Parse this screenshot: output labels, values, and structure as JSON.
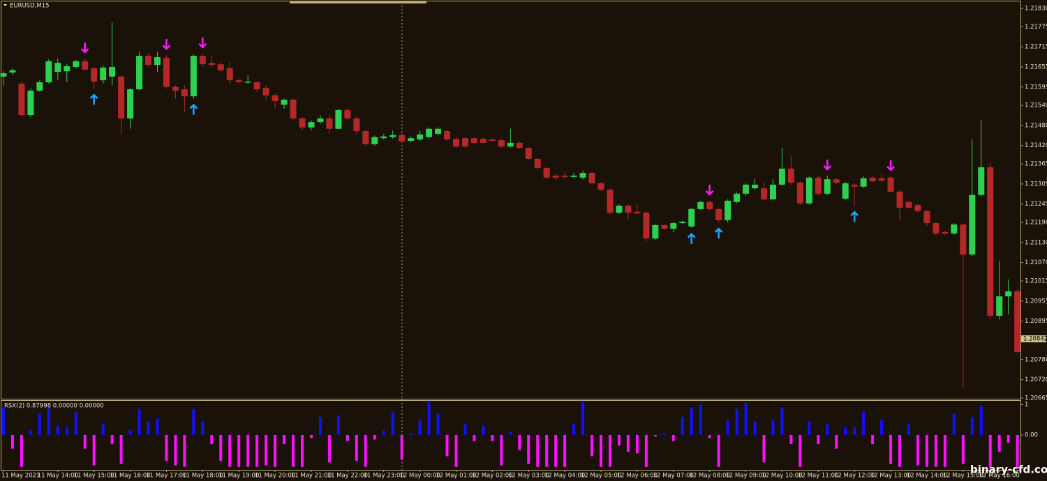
{
  "chart_data": [
    {
      "type": "candlestick",
      "title": "EURUSD,M15",
      "categories": [
        "11 May 2021",
        null,
        null,
        null,
        null,
        null,
        "11 May 14:00",
        null,
        null,
        null,
        "11 May 15:00",
        null,
        null,
        null,
        "11 May 16:00",
        null,
        null,
        null,
        "11 May 17:00",
        null,
        null,
        null,
        "11 May 18:00",
        null,
        null,
        null,
        "11 May 19:00",
        null,
        null,
        null,
        "11 May 20:00",
        null,
        null,
        null,
        "11 May 21:00",
        null,
        null,
        null,
        "11 May 22:00",
        null,
        null,
        null,
        "11 May 23:00",
        null,
        null,
        null,
        "12 May 00:00",
        null,
        null,
        null,
        "12 May 01:00",
        null,
        null,
        null,
        "12 May 02:00",
        null,
        null,
        null,
        "12 May 03:00",
        null,
        null,
        null,
        "12 May 04:00",
        null,
        null,
        null,
        "12 May 05:00",
        null,
        null,
        null,
        "12 May 06:00",
        null,
        null,
        null,
        "12 May 07:00",
        null,
        null,
        null,
        "12 May 08:00",
        null,
        null,
        null,
        "12 May 09:00",
        null,
        null,
        null,
        "12 May 10:00",
        null,
        null,
        null,
        "12 May 11:00",
        null,
        null,
        null,
        "12 May 12:00",
        null,
        null,
        null,
        "12 May 13:00",
        null,
        null,
        null,
        "12 May 14:00",
        null,
        null,
        null,
        "12 May 15:00",
        null,
        null,
        null,
        "12 May 16:00",
        null,
        null
      ],
      "open": [
        1.21626,
        1.21638,
        1.21605,
        1.21511,
        1.21584,
        1.21609,
        1.2164,
        1.21642,
        1.21655,
        1.21672,
        1.21651,
        1.21615,
        1.21626,
        1.21626,
        1.21501,
        1.21588,
        1.21688,
        1.21661,
        1.21682,
        1.21595,
        1.21588,
        1.21567,
        1.21688,
        1.21667,
        1.21663,
        1.21651,
        1.21615,
        1.21609,
        1.21609,
        1.21592,
        1.2157,
        1.21542,
        1.21557,
        1.21501,
        1.21474,
        1.2149,
        1.21501,
        1.2147,
        1.21526,
        1.21501,
        1.21463,
        1.21424,
        1.21442,
        1.21445,
        1.21451,
        1.21434,
        1.21438,
        1.21445,
        1.21455,
        1.21463,
        1.2144,
        1.21442,
        1.21442,
        1.2144,
        1.21438,
        1.21436,
        1.21417,
        1.21428,
        1.21413,
        1.2138,
        1.21353,
        1.2133,
        1.2133,
        1.21326,
        1.21324,
        1.21338,
        1.21307,
        1.21288,
        1.21219,
        1.2124,
        1.21222,
        1.21219,
        1.21142,
        1.21182,
        1.21171,
        1.21188,
        1.21178,
        1.2123,
        1.21251,
        1.2123,
        1.21197,
        1.21251,
        1.21276,
        1.21292,
        1.21292,
        1.21259,
        1.21303,
        1.21351,
        1.21309,
        1.21247,
        1.21324,
        1.21276,
        1.21319,
        1.21261,
        1.21303,
        1.21297,
        1.21324,
        1.21322,
        1.21324,
        1.21282,
        1.21251,
        1.21242,
        1.21224,
        1.21188,
        1.21161,
        1.21157,
        1.21184,
        1.21094,
        1.21272,
        1.21355,
        1.20911,
        1.20969,
        1.20984
      ],
      "high": [
        1.21642,
        1.2165,
        1.21612,
        1.2159,
        1.21615,
        1.21678,
        1.2168,
        1.21665,
        1.21676,
        1.2168,
        1.21655,
        1.2166,
        1.21788,
        1.2163,
        1.21592,
        1.217,
        1.21695,
        1.217,
        1.2169,
        1.216,
        1.216,
        1.21692,
        1.21695,
        1.2169,
        1.2167,
        1.2167,
        1.2162,
        1.2163,
        1.21612,
        1.216,
        1.21575,
        1.2156,
        1.2156,
        1.21505,
        1.21495,
        1.2151,
        1.2151,
        1.2153,
        1.21532,
        1.21505,
        1.21465,
        1.2145,
        1.21455,
        1.21465,
        1.21458,
        1.21448,
        1.21465,
        1.21475,
        1.21476,
        1.21468,
        1.21445,
        1.21446,
        1.21445,
        1.21444,
        1.2144,
        1.2144,
        1.2147,
        1.21432,
        1.21416,
        1.21384,
        1.21357,
        1.21334,
        1.2134,
        1.21338,
        1.21345,
        1.21342,
        1.21311,
        1.21292,
        1.21244,
        1.21244,
        1.21245,
        1.21224,
        1.21186,
        1.21186,
        1.21192,
        1.21196,
        1.21234,
        1.21255,
        1.21255,
        1.21234,
        1.21259,
        1.2128,
        1.21307,
        1.2132,
        1.2131,
        1.2132,
        1.21413,
        1.2139,
        1.21313,
        1.21328,
        1.2133,
        1.2133,
        1.21323,
        1.21311,
        1.21307,
        1.2133,
        1.21328,
        1.21335,
        1.21328,
        1.21286,
        1.21255,
        1.21246,
        1.21228,
        1.21192,
        1.21165,
        1.21188,
        1.21188,
        1.21438,
        1.21497,
        1.2137,
        1.21076,
        1.2102,
        1.2099
      ],
      "low": [
        1.216,
        1.2163,
        1.21505,
        1.21505,
        1.2158,
        1.21605,
        1.21615,
        1.2161,
        1.2165,
        1.21645,
        1.2159,
        1.21605,
        1.216,
        1.21455,
        1.2147,
        1.21584,
        1.21655,
        1.2164,
        1.2159,
        1.2156,
        1.2152,
        1.2156,
        1.21655,
        1.21655,
        1.2164,
        1.21605,
        1.21605,
        1.21605,
        1.2158,
        1.21555,
        1.2153,
        1.2153,
        1.21495,
        1.21465,
        1.21465,
        1.21485,
        1.21455,
        1.21468,
        1.21495,
        1.21455,
        1.2142,
        1.2142,
        1.21438,
        1.2144,
        1.21428,
        1.2143,
        1.21434,
        1.2144,
        1.21452,
        1.21434,
        1.21413,
        1.21413,
        1.21424,
        1.21426,
        1.21432,
        1.21413,
        1.21413,
        1.21409,
        1.21376,
        1.21349,
        1.2132,
        1.21318,
        1.21318,
        1.21322,
        1.21318,
        1.21303,
        1.21284,
        1.21215,
        1.21215,
        1.212,
        1.21214,
        1.2113,
        1.21138,
        1.21167,
        1.2116,
        1.21184,
        1.21174,
        1.21226,
        1.21226,
        1.2119,
        1.2119,
        1.21247,
        1.2127,
        1.21288,
        1.21255,
        1.21255,
        1.21299,
        1.21303,
        1.21243,
        1.21243,
        1.2127,
        1.21272,
        1.21305,
        1.21257,
        1.2124,
        1.21293,
        1.2131,
        1.2131,
        1.21278,
        1.21195,
        1.2123,
        1.2122,
        1.2118,
        1.2115,
        1.21153,
        1.21153,
        1.20694,
        1.2109,
        1.21268,
        1.209,
        1.209,
        1.20915,
        1.208
      ],
      "close": [
        1.21636,
        1.21645,
        1.21511,
        1.21584,
        1.21609,
        1.21672,
        1.21667,
        1.21657,
        1.21672,
        1.21647,
        1.21611,
        1.21653,
        1.21655,
        1.21501,
        1.21588,
        1.21688,
        1.21661,
        1.21684,
        1.21595,
        1.21584,
        1.21567,
        1.21688,
        1.21663,
        1.21661,
        1.21645,
        1.21615,
        1.21609,
        1.21611,
        1.21588,
        1.2157,
        1.21553,
        1.21557,
        1.21501,
        1.21474,
        1.2149,
        1.21501,
        1.2147,
        1.21526,
        1.21501,
        1.21463,
        1.21424,
        1.21445,
        1.21447,
        1.21451,
        1.21432,
        1.21442,
        1.21453,
        1.2147,
        1.2147,
        1.21438,
        1.21417,
        1.21417,
        1.21428,
        1.21428,
        1.21434,
        1.21417,
        1.21428,
        1.21413,
        1.2138,
        1.21353,
        1.21324,
        1.21324,
        1.21326,
        1.2133,
        1.21338,
        1.21307,
        1.21288,
        1.21219,
        1.2124,
        1.21219,
        1.21217,
        1.21142,
        1.21182,
        1.21171,
        1.21188,
        1.21192,
        1.2123,
        1.21251,
        1.2123,
        1.21197,
        1.21255,
        1.21276,
        1.21303,
        1.21303,
        1.21259,
        1.21303,
        1.21351,
        1.21309,
        1.21247,
        1.21324,
        1.21276,
        1.21319,
        1.21309,
        1.21307,
        1.21297,
        1.21322,
        1.21313,
        1.21315,
        1.21282,
        1.21234,
        1.21234,
        1.21224,
        1.21188,
        1.21157,
        1.21157,
        1.21184,
        1.21094,
        1.21272,
        1.21355,
        1.20911,
        1.20969,
        1.20984,
        1.20803
      ],
      "up_color": "#2ed14f",
      "down_color": "#b52828",
      "down_arrows": [
        9,
        18,
        22,
        78,
        91,
        98
      ],
      "up_arrows": [
        10,
        21,
        76,
        79,
        94
      ],
      "down_arrow_color": "#ff19ff",
      "up_arrow_color": "#19a8ff",
      "ylim": [
        1.20665,
        1.2183
      ],
      "yticks": [
        {
          "value": 1.2183,
          "label": "1.21830"
        },
        {
          "value": 1.21775,
          "label": "1.21775"
        },
        {
          "value": 1.21715,
          "label": "1.21715"
        },
        {
          "value": 1.21655,
          "label": "1.21655"
        },
        {
          "value": 1.21595,
          "label": "1.21595"
        },
        {
          "value": 1.2154,
          "label": "1.21540"
        },
        {
          "value": 1.2148,
          "label": "1.21480"
        },
        {
          "value": 1.2142,
          "label": "1.21420"
        },
        {
          "value": 1.21365,
          "label": "1.21365"
        },
        {
          "value": 1.21305,
          "label": "1.21305"
        },
        {
          "value": 1.21245,
          "label": "1.21245"
        },
        {
          "value": 1.2119,
          "label": "1.21190"
        },
        {
          "value": 1.2113,
          "label": "1.21130"
        },
        {
          "value": 1.2107,
          "label": "1.21070"
        },
        {
          "value": 1.21015,
          "label": "1.21015"
        },
        {
          "value": 1.20955,
          "label": "1.20955"
        },
        {
          "value": 1.20895,
          "label": "1.20895"
        },
        {
          "value": 1.2078,
          "label": "1.20780"
        },
        {
          "value": 1.2072,
          "label": "1.20720"
        },
        {
          "value": 1.20665,
          "label": "1.20665"
        }
      ],
      "last_price": {
        "value": 1.20842,
        "label": "1.20842"
      }
    },
    {
      "type": "bar",
      "title": "RSX(2) 0.87998 0.00000 0.00000",
      "values": [
        0.9,
        -0.45,
        -1.05,
        0.15,
        0.7,
        0.9,
        0.3,
        0.25,
        0.75,
        -0.45,
        -1.0,
        0.35,
        -0.3,
        -0.95,
        0.15,
        0.85,
        0.45,
        0.55,
        -0.85,
        -1.0,
        -1.05,
        0.85,
        0.45,
        -0.3,
        -0.85,
        -1.05,
        -1.05,
        -1.05,
        -1.05,
        -1.0,
        -1.05,
        -0.3,
        -1.05,
        -1.05,
        -0.1,
        0.6,
        -0.9,
        0.65,
        -0.2,
        -0.85,
        -1.05,
        -0.15,
        0.15,
        0.75,
        -0.8,
        0.05,
        0.5,
        1.1,
        0.7,
        -0.7,
        -1.05,
        0.35,
        -0.2,
        0.3,
        -0.2,
        -1.0,
        0.1,
        -0.5,
        -0.95,
        -1.05,
        -1.05,
        -1.05,
        -1.05,
        0.35,
        1.1,
        -0.7,
        -1.05,
        -1.05,
        -0.35,
        -0.55,
        -0.6,
        -1.05,
        -0.05,
        0.05,
        -0.2,
        0.6,
        0.9,
        1.0,
        -0.1,
        -1.05,
        0.5,
        0.85,
        1.05,
        0.45,
        -0.9,
        0.5,
        0.9,
        -0.3,
        -1.05,
        0.45,
        -0.3,
        0.35,
        -0.45,
        0.25,
        0.25,
        0.75,
        -0.3,
        0.5,
        -0.95,
        -1.05,
        0.35,
        -1.0,
        -1.05,
        -1.05,
        -1.05,
        0.7,
        -0.95,
        0.6,
        0.95,
        -1.05,
        -0.55,
        -0.25,
        -1.05
      ],
      "positive_color": "#1010ff",
      "negative_color": "#ff10ff",
      "ylim": [
        -1.1,
        1.1
      ],
      "yticks": [
        1,
        {
          "value": 0,
          "label": "0.00"
        }
      ]
    }
  ],
  "watermark": "binary-cfd.com"
}
